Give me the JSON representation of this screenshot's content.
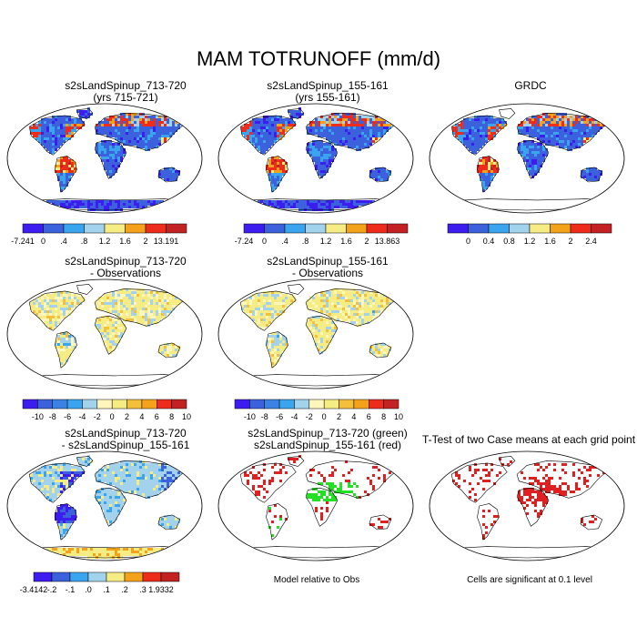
{
  "page_title": "MAM TOTRUNOFF (mm/d)",
  "palettes": {
    "abs": [
      "#3d1cf0",
      "#3b62dc",
      "#3ba4ee",
      "#a2d2ec",
      "#f6ec84",
      "#f4a21c",
      "#ee2c1c",
      "#c22222"
    ],
    "diff": [
      "#3d1cf0",
      "#3b62dc",
      "#3b82e4",
      "#3ba4ee",
      "#a2d2ec",
      "#fef6bc",
      "#f6ec84",
      "#f4c03c",
      "#f4a21c",
      "#ee2c1c",
      "#c22222"
    ],
    "sig": "#e02020",
    "green": "#22e022",
    "red": "#e02020"
  },
  "panels": [
    {
      "id": "p1",
      "title1": "s2sLandSpinup_713-720",
      "title2": "(yrs 715-721)"
    },
    {
      "id": "p2",
      "title1": "s2sLandSpinup_155-161",
      "title2": "(yrs 155-161)"
    },
    {
      "id": "p3",
      "title1": "",
      "title2": "GRDC"
    },
    {
      "id": "p4",
      "title1": "s2sLandSpinup_713-720",
      "title2": "- Observations"
    },
    {
      "id": "p5",
      "title1": "s2sLandSpinup_155-161",
      "title2": "- Observations"
    },
    {
      "id": "p7",
      "title1": "s2sLandSpinup_713-720",
      "title2": "- s2sLandSpinup_155-161"
    },
    {
      "id": "p8",
      "title1": "s2sLandSpinup_713-720 (green)",
      "title2": "s2sLandSpinup_155-161 (red)"
    },
    {
      "id": "p9",
      "title1": "T-Test of two Case means at each grid point",
      "title2": ""
    }
  ],
  "notes": {
    "model_relative": "Model relative to Obs",
    "significant": "Cells are significant at 0.1 level"
  },
  "chart_data": [
    {
      "type": "heatmap",
      "panel": "p1",
      "field": "TOTRUNOFF",
      "season": "MAM",
      "units": "mm/d",
      "colorbar": {
        "ticks": [
          "-7.241",
          "0",
          ".4",
          ".8",
          "1.2",
          "1.6",
          "2",
          "13.191"
        ],
        "min": -7.241,
        "max": 13.191
      }
    },
    {
      "type": "heatmap",
      "panel": "p2",
      "field": "TOTRUNOFF",
      "season": "MAM",
      "units": "mm/d",
      "colorbar": {
        "ticks": [
          "-7.24",
          "0",
          ".4",
          ".8",
          "1.2",
          "1.6",
          "2",
          "13.863"
        ],
        "min": -7.24,
        "max": 13.863
      }
    },
    {
      "type": "heatmap",
      "panel": "p3",
      "field": "TOTRUNOFF",
      "season": "MAM",
      "units": "mm/d",
      "colorbar": {
        "ticks": [
          "0",
          "0.4",
          "0.8",
          "1.2",
          "1.6",
          "2",
          "2.4"
        ]
      }
    },
    {
      "type": "heatmap",
      "panel": "p4",
      "field": "TOTRUNOFF difference",
      "colorbar": {
        "ticks": [
          "-10",
          "-8",
          "-6",
          "-4",
          "-2",
          "0",
          "2",
          "4",
          "6",
          "8",
          "10"
        ]
      }
    },
    {
      "type": "heatmap",
      "panel": "p5",
      "field": "TOTRUNOFF difference",
      "colorbar": {
        "ticks": [
          "-10",
          "-8",
          "-6",
          "-4",
          "-2",
          "0",
          "2",
          "4",
          "6",
          "8",
          "10"
        ]
      }
    },
    {
      "type": "heatmap",
      "panel": "p7",
      "field": "TOTRUNOFF case difference",
      "colorbar": {
        "ticks": [
          "-3.4142",
          "-.2",
          "-.1",
          ".0",
          ".1",
          ".2",
          ".3",
          "1.9332"
        ],
        "min": -3.4142,
        "max": 1.9332
      }
    },
    {
      "type": "scatter",
      "panel": "p8",
      "series": [
        {
          "name": "s2sLandSpinup_713-720",
          "color": "green"
        },
        {
          "name": "s2sLandSpinup_155-161",
          "color": "red"
        }
      ]
    },
    {
      "type": "scatter",
      "panel": "p9",
      "series": [
        {
          "name": "significant cells",
          "color": "red",
          "level": 0.1
        }
      ]
    }
  ]
}
